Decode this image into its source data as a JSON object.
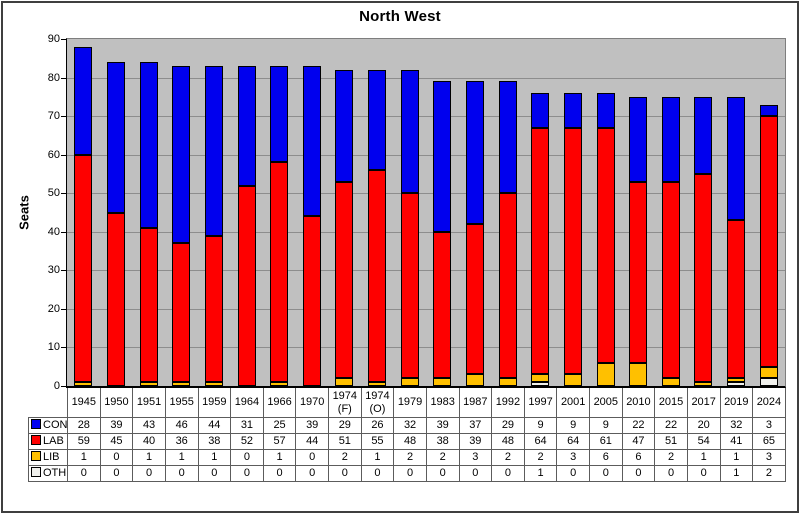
{
  "chart": {
    "title": "North West",
    "ylabel": "Seats"
  },
  "chart_data": {
    "type": "bar",
    "stacked": true,
    "title": "North West",
    "xlabel": "",
    "ylabel": "Seats",
    "ylim": [
      0,
      90
    ],
    "yticks": [
      0,
      10,
      20,
      30,
      40,
      50,
      60,
      70,
      80,
      90
    ],
    "grid": "horizontal",
    "plot_background": "#c0c0c0",
    "gridline_color": "#8d8d8d",
    "legend_position": "table-row-headers-left",
    "categories": [
      "1945",
      "1950",
      "1951",
      "1955",
      "1959",
      "1964",
      "1966",
      "1970",
      "1974 (F)",
      "1974 (O)",
      "1979",
      "1983",
      "1987",
      "1992",
      "1997",
      "2001",
      "2005",
      "2010",
      "2015",
      "2017",
      "2019",
      "2024"
    ],
    "series": [
      {
        "name": "CON",
        "color": "#0000ee",
        "values": [
          28,
          39,
          43,
          46,
          44,
          31,
          25,
          39,
          29,
          26,
          32,
          39,
          37,
          29,
          9,
          9,
          9,
          22,
          22,
          20,
          32,
          3
        ]
      },
      {
        "name": "LAB",
        "color": "#fe0000",
        "values": [
          59,
          45,
          40,
          36,
          38,
          52,
          57,
          44,
          51,
          55,
          48,
          38,
          39,
          48,
          64,
          64,
          61,
          47,
          51,
          54,
          41,
          65
        ]
      },
      {
        "name": "LIB",
        "color": "#ffc000",
        "values": [
          1,
          0,
          1,
          1,
          1,
          0,
          1,
          0,
          2,
          1,
          2,
          2,
          3,
          2,
          2,
          3,
          6,
          6,
          2,
          1,
          1,
          3
        ]
      },
      {
        "name": "OTH",
        "color": "#f0f0ec",
        "values": [
          0,
          0,
          0,
          0,
          0,
          0,
          0,
          0,
          0,
          0,
          0,
          0,
          0,
          0,
          1,
          0,
          0,
          0,
          0,
          0,
          1,
          2
        ]
      }
    ],
    "stack_order_bottom_to_top": [
      "OTH",
      "LIB",
      "LAB",
      "CON"
    ]
  }
}
